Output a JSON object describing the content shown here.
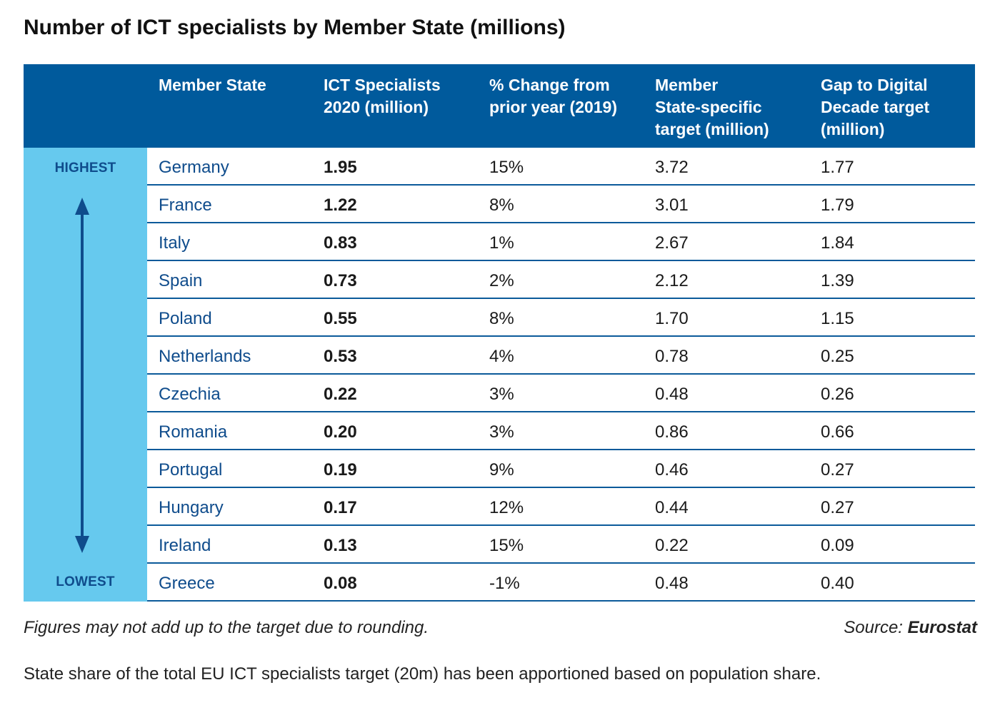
{
  "title": "Number of ICT specialists by Member State (millions)",
  "colors": {
    "header_bg": "#005a9c",
    "sidebar_bg": "#66c9ee",
    "accent_text": "#0f4c8c",
    "row_rule": "#0b5a9a"
  },
  "sidebar": {
    "top_label": "HIGHEST",
    "bottom_label": "LOWEST",
    "icon": "double-headed-vertical-arrow-icon"
  },
  "chart_data": {
    "type": "table",
    "title": "Number of ICT specialists by Member State (millions)",
    "columns": [
      "Member State",
      "ICT Specialists\n2020 (million)",
      "% Change from\nprior year (2019)",
      "Member\nState-specific\ntarget (million)",
      "Gap to Digital\nDecade target\n(million)"
    ],
    "rows": [
      [
        "Germany",
        "1.95",
        "15%",
        "3.72",
        "1.77"
      ],
      [
        "France",
        "1.22",
        "8%",
        "3.01",
        "1.79"
      ],
      [
        "Italy",
        "0.83",
        "1%",
        "2.67",
        "1.84"
      ],
      [
        "Spain",
        "0.73",
        "2%",
        "2.12",
        "1.39"
      ],
      [
        "Poland",
        "0.55",
        "8%",
        "1.70",
        "1.15"
      ],
      [
        "Netherlands",
        "0.53",
        "4%",
        "0.78",
        "0.25"
      ],
      [
        "Czechia",
        "0.22",
        "3%",
        "0.48",
        "0.26"
      ],
      [
        "Romania",
        "0.20",
        "3%",
        "0.86",
        "0.66"
      ],
      [
        "Portugal",
        "0.19",
        "9%",
        "0.46",
        "0.27"
      ],
      [
        "Hungary",
        "0.17",
        "12%",
        "0.44",
        "0.27"
      ],
      [
        "Ireland",
        "0.13",
        "15%",
        "0.22",
        "0.09"
      ],
      [
        "Greece",
        "0.08",
        "-1%",
        "0.48",
        "0.40"
      ]
    ]
  },
  "notes": {
    "rounding": "Figures may not add up to the target due to rounding.",
    "source_prefix": "Source: ",
    "source_name": "Eurostat",
    "footer": "State share of the total EU ICT specialists target (20m) has been apportioned based on population share."
  }
}
